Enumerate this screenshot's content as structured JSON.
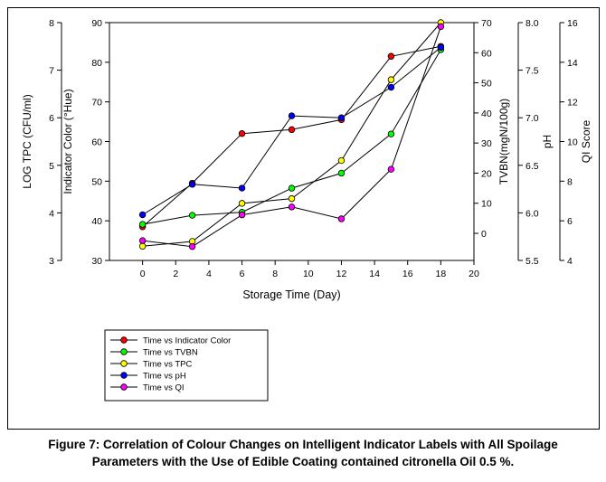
{
  "caption": {
    "line1": "Figure 7: Correlation of Colour Changes on Intelligent Indicator Labels with All Spoilage",
    "line2": "Parameters with the Use of Edible Coating contained citronella Oil 0.5 %."
  },
  "chart_data": {
    "type": "line",
    "xlabel": "Storage Time (Day)",
    "xlim": [
      -2,
      20
    ],
    "xticks": [
      0,
      2,
      4,
      6,
      8,
      10,
      12,
      14,
      16,
      18,
      20
    ],
    "grid": false,
    "legend_position": "bottom-left",
    "axes": [
      {
        "id": "tpc",
        "label": "LOG TPC (CFU/ml)",
        "range": [
          3,
          8
        ],
        "ticks": [
          3,
          4,
          5,
          6,
          7,
          8
        ]
      },
      {
        "id": "color",
        "label": "Indicator Color (°Hue)",
        "range": [
          30,
          90
        ],
        "ticks": [
          30,
          40,
          50,
          60,
          70,
          80,
          90
        ]
      },
      {
        "id": "tvbn",
        "label": "TVBN(mgN/100g)",
        "range": [
          -9,
          70
        ],
        "ticks": [
          0,
          10,
          20,
          30,
          40,
          50,
          60,
          70
        ]
      },
      {
        "id": "ph",
        "label": "pH",
        "range": [
          5.5,
          8.0
        ],
        "ticks": [
          "5.5",
          "6.0",
          "6.5",
          "7.0",
          "7.5",
          "8.0"
        ]
      },
      {
        "id": "qi",
        "label": "QI Score",
        "range": [
          4,
          16
        ],
        "ticks": [
          4,
          6,
          8,
          10,
          12,
          14,
          16
        ]
      }
    ],
    "series": [
      {
        "name": "Time vs Indicator Color",
        "axis": "color",
        "color": "#ff0000",
        "x": [
          0,
          3,
          6,
          9,
          12,
          15,
          18
        ],
        "y": [
          38.5,
          49.5,
          62,
          63,
          65.5,
          81.5,
          84
        ]
      },
      {
        "name": "Time vs TVBN",
        "axis": "tvbn",
        "color": "#00ff00",
        "x": [
          0,
          3,
          6,
          9,
          12,
          15,
          18
        ],
        "y": [
          3,
          6,
          7,
          15,
          20,
          33,
          61
        ]
      },
      {
        "name": "Time vs TPC",
        "axis": "tpc",
        "color": "#ffff00",
        "x": [
          0,
          3,
          6,
          9,
          12,
          15,
          18
        ],
        "y": [
          3.3,
          3.4,
          4.2,
          4.3,
          5.1,
          6.8,
          8.0
        ]
      },
      {
        "name": "Time vs pH",
        "axis": "ph",
        "color": "#0000ff",
        "x": [
          0,
          3,
          6,
          9,
          12,
          15,
          18
        ],
        "y": [
          5.98,
          6.3,
          6.26,
          7.02,
          7.0,
          7.32,
          7.74
        ]
      },
      {
        "name": "Time vs QI",
        "axis": "qi",
        "color": "#ff00ff",
        "x": [
          0,
          3,
          6,
          9,
          12,
          15,
          18
        ],
        "y": [
          5.0,
          4.7,
          6.3,
          6.7,
          6.1,
          8.6,
          15.8
        ]
      }
    ]
  }
}
